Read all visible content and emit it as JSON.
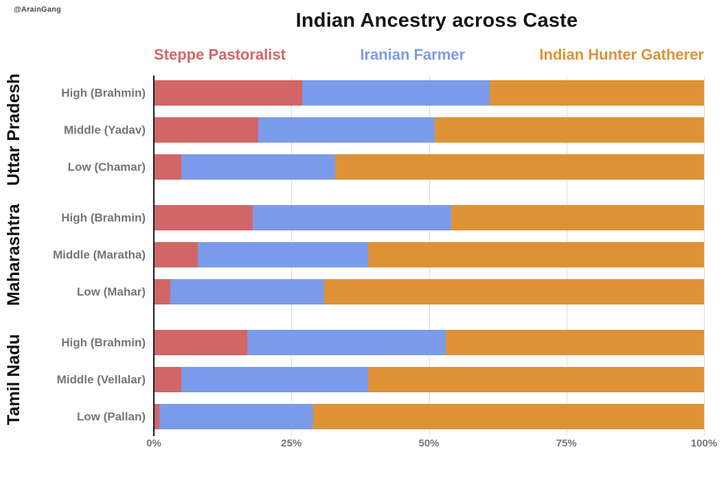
{
  "watermark": "@ArainGang",
  "title": "Indian Ancestry across Caste",
  "chart_data": {
    "type": "bar",
    "orientation": "horizontal",
    "stacked": true,
    "normalized_to_100": true,
    "title": "Indian Ancestry across Caste",
    "xlabel": "",
    "ylabel": "",
    "xlim": [
      0,
      100
    ],
    "x_tick_values": [
      0,
      25,
      50,
      75,
      100
    ],
    "x_tick_labels": [
      "0%",
      "25%",
      "50%",
      "75%",
      "100%"
    ],
    "grid": true,
    "legend_position": "top",
    "series": [
      {
        "name": "Steppe Pastoralist",
        "color": "#d26667"
      },
      {
        "name": "Iranian Farmer",
        "color": "#7b9bea"
      },
      {
        "name": "Indian Hunter Gatherer",
        "color": "#de9236"
      }
    ],
    "groups": [
      {
        "name": "Uttar Pradesh",
        "rows": [
          {
            "label": "High (Brahmin)",
            "values": [
              27,
              34,
              39
            ]
          },
          {
            "label": "Middle (Yadav)",
            "values": [
              19,
              32,
              49
            ]
          },
          {
            "label": "Low (Chamar)",
            "values": [
              5,
              28,
              67
            ]
          }
        ]
      },
      {
        "name": "Maharashtra",
        "rows": [
          {
            "label": "High (Brahmin)",
            "values": [
              18,
              36,
              46
            ]
          },
          {
            "label": "Middle (Maratha)",
            "values": [
              8,
              31,
              61
            ]
          },
          {
            "label": "Low (Mahar)",
            "values": [
              3,
              28,
              69
            ]
          }
        ]
      },
      {
        "name": "Tamil Nadu",
        "rows": [
          {
            "label": "High (Brahmin)",
            "values": [
              17,
              36,
              47
            ]
          },
          {
            "label": "Middle (Vellalar)",
            "values": [
              5,
              34,
              61
            ]
          },
          {
            "label": "Low (Pallan)",
            "values": [
              1,
              28,
              71
            ]
          }
        ]
      }
    ]
  }
}
